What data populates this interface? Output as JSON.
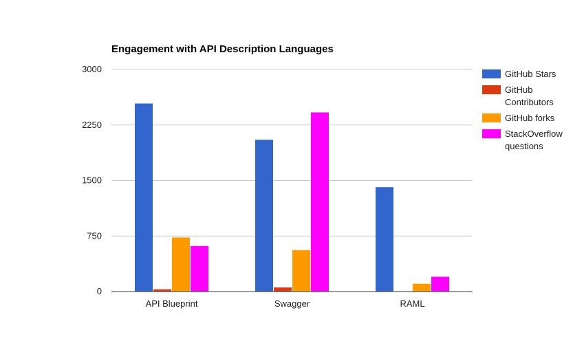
{
  "chart_data": {
    "type": "bar",
    "title": "Engagement with API Description Languages",
    "xlabel": "",
    "ylabel": "",
    "categories": [
      "API Blueprint",
      "Swagger",
      "RAML"
    ],
    "series": [
      {
        "name": "GitHub Stars",
        "color": "#3366cc",
        "values": [
          2540,
          2050,
          1410
        ]
      },
      {
        "name": "GitHub Contributors",
        "color": "#dc3912",
        "values": [
          30,
          55,
          5
        ]
      },
      {
        "name": "GitHub forks",
        "color": "#ff9900",
        "values": [
          730,
          560,
          105
        ]
      },
      {
        "name": "StackOverflow questions",
        "color": "#ff00ff",
        "values": [
          615,
          2420,
          200
        ]
      }
    ],
    "ylim": [
      0,
      3000
    ],
    "yticks": [
      0,
      750,
      1500,
      2250,
      3000
    ],
    "ytick_labels": [
      "0",
      "750",
      "1500",
      "2250",
      "3000"
    ],
    "grid": true,
    "legend_position": "right"
  }
}
